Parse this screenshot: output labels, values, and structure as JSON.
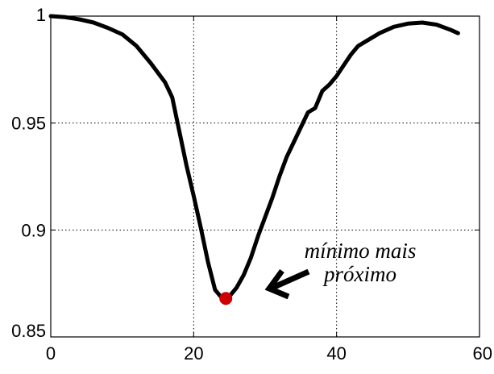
{
  "chart_data": {
    "type": "line",
    "xlim": [
      0,
      60
    ],
    "ylim": [
      0.85,
      1.0
    ],
    "xticks": [
      0,
      20,
      40,
      60
    ],
    "xtick_labels": [
      "0",
      "20",
      "40",
      "60"
    ],
    "yticks": [
      0.85,
      0.9,
      0.95,
      1.0
    ],
    "ytick_labels": [
      "0.85",
      "0.9",
      "0.95",
      "1"
    ],
    "grid": true,
    "series": [
      {
        "color": "#000000",
        "x": [
          0,
          2,
          4,
          6,
          8,
          10,
          12,
          14,
          16,
          17,
          18,
          19,
          20,
          21,
          22,
          23,
          24,
          25,
          26,
          27,
          28,
          29,
          30,
          31,
          32,
          33,
          34,
          35,
          36,
          37,
          38,
          39,
          40,
          41,
          42,
          43,
          44,
          46,
          48,
          50,
          52,
          54,
          56,
          57
        ],
        "y": [
          1.0,
          0.9995,
          0.9985,
          0.997,
          0.9945,
          0.9915,
          0.986,
          0.978,
          0.969,
          0.962,
          0.946,
          0.93,
          0.916,
          0.901,
          0.885,
          0.872,
          0.868,
          0.869,
          0.873,
          0.879,
          0.887,
          0.897,
          0.906,
          0.915,
          0.925,
          0.934,
          0.941,
          0.948,
          0.955,
          0.957,
          0.965,
          0.968,
          0.972,
          0.977,
          0.982,
          0.986,
          0.988,
          0.992,
          0.995,
          0.9965,
          0.997,
          0.996,
          0.9935,
          0.992
        ]
      }
    ],
    "highlight_point": {
      "x": 24.5,
      "y": 0.868,
      "color": "#cc0000"
    },
    "annotation": {
      "lines": [
        "mínimo mais",
        "próximo"
      ]
    }
  }
}
